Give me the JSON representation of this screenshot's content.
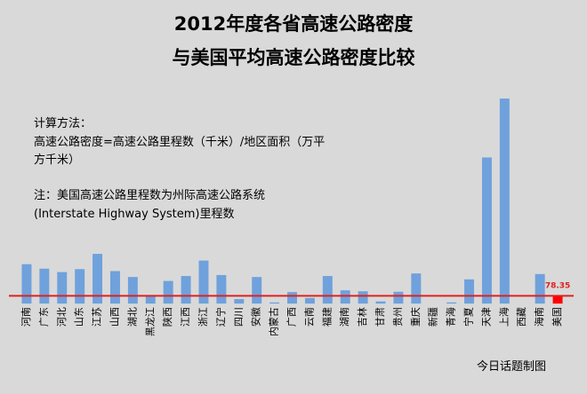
{
  "chart_data": {
    "type": "bar",
    "title": "2012年度各省高速公路密度",
    "subtitle": "与美国平均高速公路密度比较",
    "note_lines": [
      "计算方法：",
      "高速公路密度=高速公路里程数（千米）/地区面积（万平",
      "方千米）",
      "注：美国高速公路里程数为州际高速公路系统",
      "(Interstate Highway System)里程数"
    ],
    "credit": "今日话题制图",
    "categories": [
      "河南",
      "广东",
      "河北",
      "山东",
      "江苏",
      "山西",
      "湖北",
      "黑龙江",
      "陕西",
      "江西",
      "浙江",
      "辽宁",
      "四川",
      "安徽",
      "内蒙古",
      "广西",
      "云南",
      "福建",
      "湖南",
      "吉林",
      "甘肃",
      "贵州",
      "重庆",
      "新疆",
      "青海",
      "宁夏",
      "天津",
      "上海",
      "西藏",
      "海南",
      "美国"
    ],
    "values": [
      400,
      355,
      320,
      350,
      505,
      330,
      270,
      84,
      230,
      280,
      437,
      290,
      46,
      270,
      12,
      117,
      57,
      280,
      135,
      125,
      22,
      120,
      306,
      0,
      12,
      246,
      1484,
      2082,
      0,
      300,
      78.35
    ],
    "highlight_label": "78.35",
    "reference_value": 78.35,
    "ylim": [
      -80,
      2200
    ],
    "colors": {
      "bar": "#6fa1dc",
      "highlight_bar": "#ff0000",
      "reference_line": "#e02020",
      "highlight_text": "#e02020",
      "background": "#d9d9d9"
    }
  }
}
